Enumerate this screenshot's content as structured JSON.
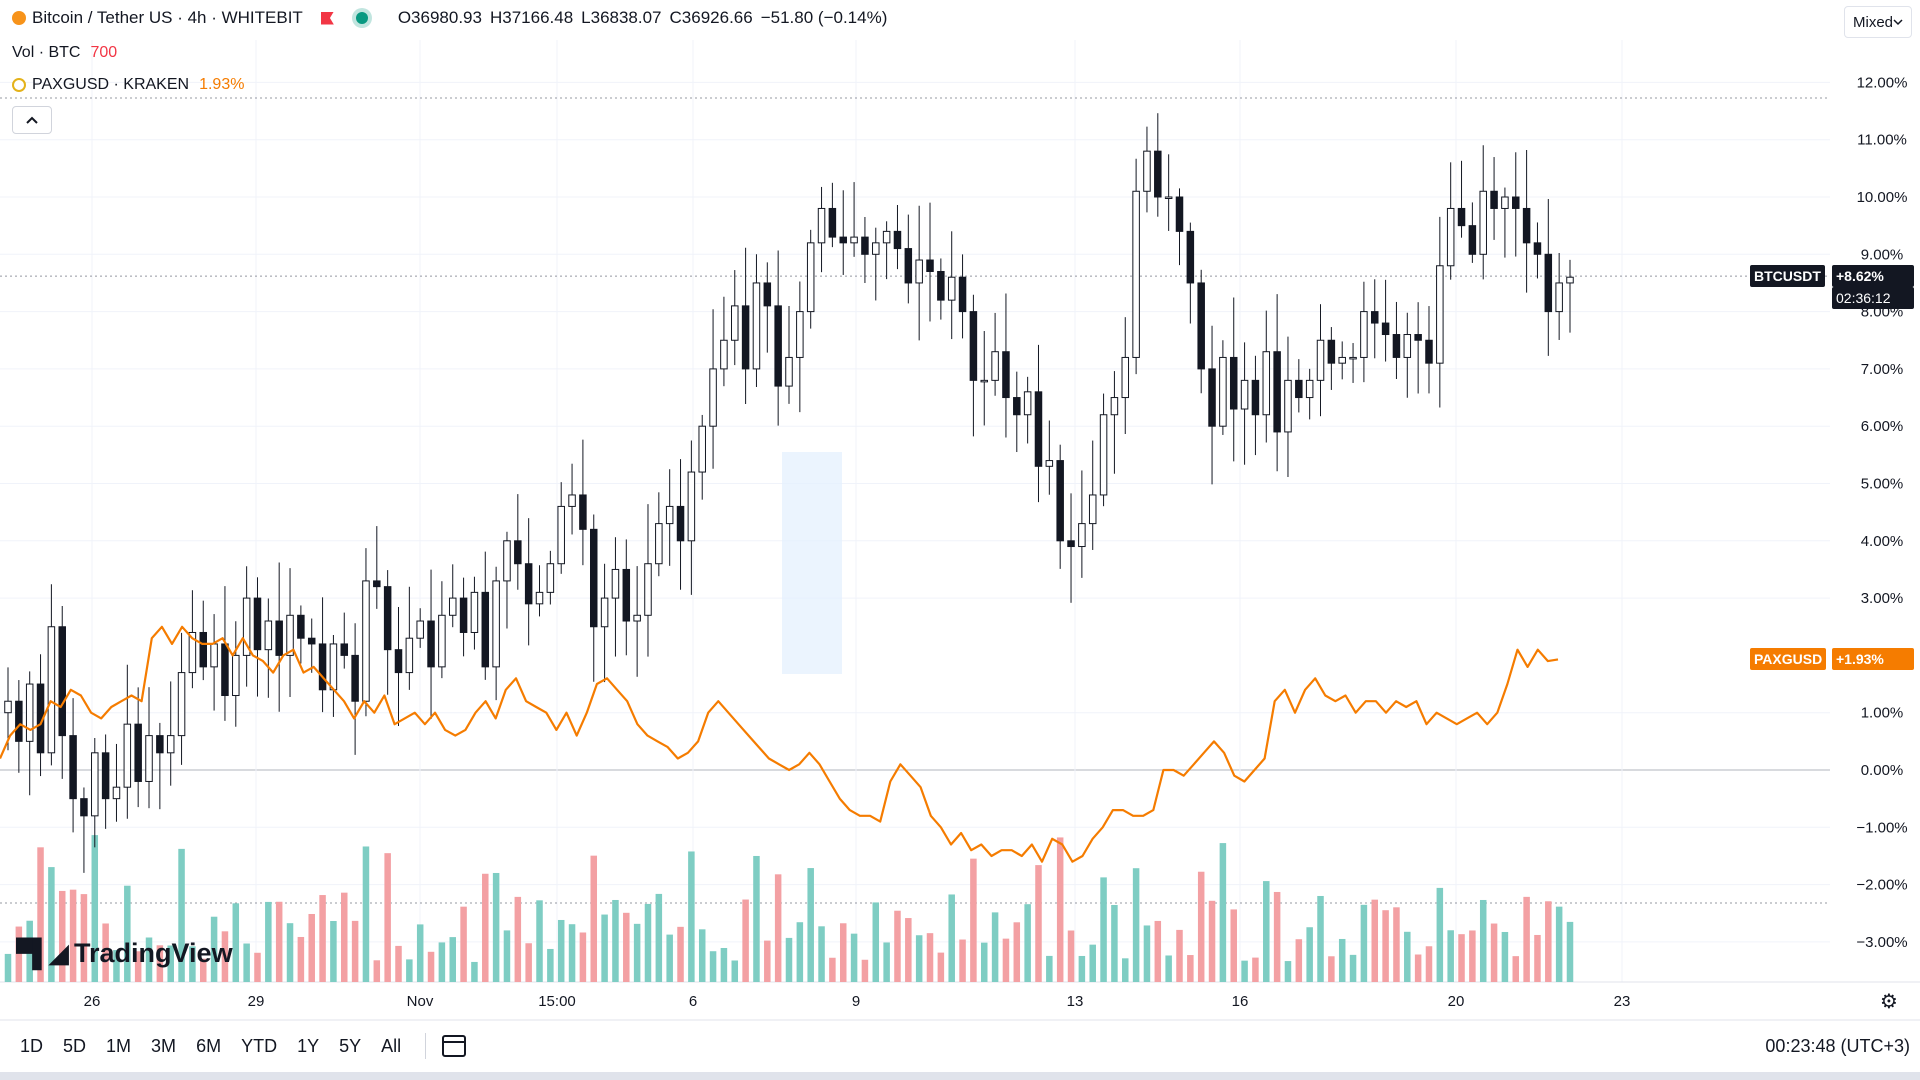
{
  "header": {
    "symbol_title": "Bitcoin / Tether US · 4h · WHITEBIT",
    "open": "O36980.93",
    "high": "H37166.48",
    "low": "L36838.07",
    "close": "C36926.66",
    "change": "−51.80 (−0.14%)",
    "vol_label": "Vol · BTC",
    "vol_value": "700",
    "compare_label": "PAXGUSD · KRAKEN",
    "compare_value": "1.93%",
    "scale_mode": "Mixed"
  },
  "price_tags": {
    "btc_name": "BTCUSDT",
    "btc_value": "+8.62%",
    "btc_timer": "02:36:12",
    "pax_name": "PAXGUSD",
    "pax_value": "+1.93%"
  },
  "bottom": {
    "ranges": [
      "1D",
      "5D",
      "1M",
      "3M",
      "6M",
      "YTD",
      "1Y",
      "5Y",
      "All"
    ],
    "clock": "00:23:48 (UTC+3)",
    "logo_text": "TradingView"
  },
  "colors": {
    "up": "#26a69a",
    "down": "#131722",
    "vol_up": "#7ecdc3",
    "vol_down": "#f3a0a3",
    "compare_line": "#f57c00",
    "grid": "#f0f3fa"
  },
  "chart_data": {
    "type": "line",
    "title": "Bitcoin / Tether US · 4h · WHITEBIT",
    "y_axis": {
      "unit": "%",
      "ylim": [
        -3.6,
        12.6
      ],
      "ticks": [
        "12.00%",
        "11.00%",
        "10.00%",
        "9.00%",
        "8.00%",
        "7.00%",
        "6.00%",
        "5.00%",
        "4.00%",
        "3.00%",
        "1.00%",
        "0.00%",
        "−1.00%",
        "−2.00%",
        "−3.00%"
      ],
      "tick_values": [
        12,
        11,
        10,
        9,
        8,
        7,
        6,
        5,
        4,
        3,
        1,
        0,
        -1,
        -2,
        -3
      ]
    },
    "x_axis": {
      "tick_labels": [
        "26",
        "29",
        "Nov",
        "15:00",
        "6",
        "9",
        "13",
        "16",
        "20",
        "23"
      ]
    },
    "grid": true,
    "series": [
      {
        "name": "BTCUSDT",
        "kind": "candlestick",
        "close_pct": [
          1.2,
          0.5,
          1.5,
          0.3,
          2.5,
          0.6,
          -0.5,
          -0.8,
          0.3,
          -0.5,
          -0.3,
          0.8,
          -0.2,
          0.6,
          0.3,
          0.6,
          1.7,
          2.4,
          1.8,
          2.2,
          1.3,
          2.0,
          3.0,
          2.1,
          2.6,
          2.0,
          2.7,
          2.3,
          2.2,
          1.4,
          2.2,
          2.0,
          1.2,
          3.3,
          3.2,
          2.1,
          1.7,
          2.3,
          2.6,
          1.8,
          2.7,
          3.0,
          2.4,
          3.1,
          1.8,
          3.3,
          4.0,
          3.6,
          2.9,
          3.1,
          3.6,
          4.6,
          4.8,
          4.2,
          2.5,
          3.0,
          3.5,
          2.6,
          2.7,
          3.6,
          4.3,
          4.6,
          4.0,
          5.2,
          6.0,
          7.0,
          7.5,
          8.1,
          7.0,
          8.5,
          8.1,
          6.7,
          7.2,
          8.0,
          9.2,
          9.8,
          9.3,
          9.2,
          9.3,
          9.0,
          9.2,
          9.4,
          9.1,
          8.5,
          8.9,
          8.7,
          8.2,
          8.6,
          8.0,
          6.8,
          6.8,
          7.3,
          6.5,
          6.2,
          6.6,
          5.3,
          5.4,
          4.0,
          3.9,
          4.3,
          4.8,
          6.2,
          6.5,
          7.2,
          10.1,
          10.8,
          10.0,
          10.0,
          9.4,
          8.5,
          7.0,
          6.0,
          7.2,
          6.3,
          6.8,
          6.2,
          7.3,
          5.9,
          6.8,
          6.5,
          6.8,
          7.5,
          7.1,
          7.2,
          7.2,
          8.0,
          7.8,
          7.6,
          7.2,
          7.6,
          7.5,
          7.1,
          8.8,
          9.8,
          9.5,
          9.0,
          10.1,
          9.8,
          10.0,
          9.8,
          9.2,
          9.0,
          8.0,
          8.5,
          8.6
        ]
      },
      {
        "name": "PAXGUSD",
        "kind": "line",
        "values_pct": [
          0.2,
          0.6,
          0.8,
          0.7,
          0.8,
          1.2,
          1.1,
          1.4,
          1.3,
          1.0,
          0.9,
          1.1,
          1.2,
          1.3,
          1.2,
          2.3,
          2.5,
          2.2,
          2.5,
          2.3,
          2.2,
          2.2,
          2.3,
          2.0,
          2.3,
          2.0,
          1.9,
          1.7,
          2.0,
          2.1,
          1.7,
          1.8,
          1.6,
          1.4,
          1.2,
          0.9,
          1.2,
          1.0,
          1.3,
          0.8,
          0.9,
          1.0,
          0.8,
          1.0,
          0.7,
          0.6,
          0.7,
          1.0,
          1.2,
          0.9,
          1.4,
          1.6,
          1.2,
          1.1,
          1.0,
          0.7,
          1.0,
          0.6,
          1.0,
          1.5,
          1.6,
          1.4,
          1.2,
          0.8,
          0.6,
          0.5,
          0.4,
          0.2,
          0.3,
          0.5,
          1.0,
          1.2,
          1.0,
          0.8,
          0.6,
          0.4,
          0.2,
          0.1,
          0.0,
          0.1,
          0.3,
          0.1,
          -0.2,
          -0.5,
          -0.7,
          -0.8,
          -0.8,
          -0.9,
          -0.2,
          0.1,
          -0.1,
          -0.3,
          -0.8,
          -1.0,
          -1.3,
          -1.1,
          -1.4,
          -1.3,
          -1.5,
          -1.4,
          -1.4,
          -1.5,
          -1.3,
          -1.6,
          -1.2,
          -1.3,
          -1.6,
          -1.5,
          -1.2,
          -1.0,
          -0.7,
          -0.7,
          -0.8,
          -0.8,
          -0.7,
          0.0,
          0.0,
          -0.1,
          0.1,
          0.3,
          0.5,
          0.3,
          -0.1,
          -0.2,
          0.0,
          0.2,
          1.2,
          1.4,
          1.0,
          1.4,
          1.6,
          1.3,
          1.2,
          1.3,
          1.0,
          1.2,
          1.2,
          1.0,
          1.2,
          1.1,
          1.2,
          0.8,
          1.0,
          0.9,
          0.8,
          0.9,
          1.0,
          0.8,
          1.0,
          1.5,
          2.1,
          1.8,
          2.1,
          1.9,
          1.93
        ]
      }
    ]
  }
}
